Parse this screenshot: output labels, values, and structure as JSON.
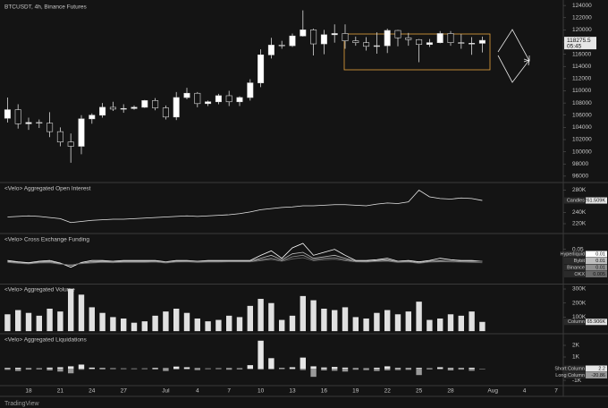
{
  "footer": "TradingView",
  "chart_data": [
    {
      "type": "candlestick",
      "title": "BTCUSDT, 4h, Binance Futures",
      "countdown": "05:45",
      "categories": [
        null,
        null,
        "18",
        null,
        null,
        "21",
        null,
        null,
        "24",
        null,
        null,
        "27",
        null,
        null,
        null,
        "Jul",
        null,
        null,
        "4",
        null,
        null,
        "7",
        null,
        null,
        "10",
        null,
        null,
        "13",
        null,
        null,
        "16",
        null,
        null,
        "19",
        null,
        null,
        "22",
        null,
        null,
        "25",
        null,
        null,
        "28",
        null,
        null,
        null,
        "Aug",
        null,
        null,
        "4",
        null,
        null,
        "7"
      ],
      "open": [
        105500,
        106900,
        104600,
        104800,
        104700,
        103300,
        101600,
        100900,
        105400,
        106000,
        107300,
        107000,
        107100,
        107300,
        108400,
        107200,
        105700,
        108900,
        109600,
        107900,
        108200,
        109200,
        108200,
        108900,
        111300,
        115900,
        117500,
        117400,
        119000,
        120000,
        117700,
        119200,
        119400,
        118200,
        117900,
        117300,
        117400,
        119900,
        118700,
        118400,
        117600,
        117900,
        119400,
        117900,
        117800,
        117800,
        null,
        null,
        null,
        null,
        null,
        null,
        null
      ],
      "high": [
        108900,
        107800,
        105600,
        105300,
        106500,
        104000,
        103000,
        106000,
        106300,
        108000,
        108200,
        107800,
        107600,
        108500,
        108800,
        107600,
        109800,
        110500,
        109800,
        108400,
        109500,
        110000,
        109100,
        111900,
        116800,
        118700,
        118200,
        119400,
        123200,
        120200,
        120000,
        120900,
        120900,
        118900,
        118800,
        119600,
        120200,
        120000,
        119500,
        118500,
        118500,
        119800,
        119800,
        119300,
        118800,
        118900,
        null,
        null,
        null,
        null,
        null,
        null,
        null
      ],
      "low": [
        104800,
        103800,
        103600,
        103900,
        102400,
        100900,
        98200,
        99600,
        104600,
        105600,
        106700,
        106400,
        106900,
        107200,
        106800,
        105300,
        105200,
        108600,
        107300,
        107500,
        107800,
        107500,
        107500,
        108400,
        110600,
        115300,
        116900,
        117200,
        118900,
        115800,
        116000,
        117900,
        116900,
        117400,
        116600,
        116100,
        116200,
        117300,
        117400,
        114700,
        117200,
        117800,
        117400,
        116900,
        115900,
        116300,
        null,
        null,
        null,
        null,
        null,
        null,
        null
      ],
      "close": [
        106900,
        104600,
        104800,
        104700,
        103300,
        101600,
        100900,
        105400,
        106000,
        107300,
        107000,
        107100,
        107300,
        108400,
        107200,
        105700,
        108900,
        109600,
        107900,
        108200,
        109200,
        108200,
        108900,
        111300,
        115900,
        117500,
        117400,
        119000,
        120000,
        117700,
        119200,
        119400,
        118200,
        117900,
        117300,
        117400,
        119900,
        118700,
        118400,
        117600,
        117900,
        119400,
        117900,
        117800,
        117800,
        118275.5,
        null,
        null,
        null,
        null,
        null,
        null,
        null
      ],
      "up_color": "#ffffff",
      "down_color": "#141414",
      "wick_color": "#d9d9d9",
      "ylim": [
        95100,
        124900
      ],
      "yticks": [
        96000,
        98000,
        100000,
        102000,
        104000,
        106000,
        108000,
        110000,
        112000,
        114000,
        116000,
        118000,
        120000,
        122000,
        124000
      ]
    },
    {
      "type": "line",
      "title": "<Velo> Aggregated Open Interest",
      "series": [
        {
          "name": "Candles",
          "color": "#e6e6e6",
          "values": [
            232000,
            233000,
            234000,
            233000,
            231000,
            229000,
            222000,
            224000,
            226000,
            227000,
            228000,
            228000,
            229000,
            230000,
            231000,
            232000,
            233000,
            234000,
            233000,
            234000,
            235000,
            236000,
            238000,
            241000,
            245000,
            247000,
            249000,
            250000,
            252000,
            252000,
            253000,
            254000,
            254000,
            253000,
            252000,
            255000,
            257000,
            256000,
            259000,
            280000,
            268000,
            265000,
            264000,
            266000,
            265000,
            261509
          ],
          "value_labels": [
            null,
            null,
            null,
            null,
            null,
            null,
            null,
            null,
            null,
            null,
            null,
            null,
            null,
            null,
            null,
            null,
            null,
            null,
            null,
            null,
            null,
            null,
            null,
            null,
            null,
            null,
            null,
            null,
            null,
            null,
            null,
            null,
            null,
            null,
            null,
            null,
            null,
            null,
            null,
            null,
            null,
            null,
            null,
            null,
            null,
            "261.509K"
          ]
        }
      ],
      "ylim": [
        204000,
        292000
      ],
      "yticks": [
        {
          "value": 220000,
          "label": "220K"
        },
        {
          "value": 240000,
          "label": "240K"
        },
        {
          "value": 280000,
          "label": "280K"
        }
      ]
    },
    {
      "type": "line",
      "title": "<Velo> Cross Exchange Funding",
      "series": [
        {
          "name": "Hyperliquid",
          "color": "#ffffff",
          "values": [
            0.0125,
            0.008,
            0.005,
            0.01,
            0.0125,
            0.004,
            -0.01,
            0.006,
            0.0125,
            0.0125,
            0.01,
            0.0125,
            0.0125,
            0.0125,
            0.0125,
            0.008,
            0.0125,
            0.0125,
            0.01,
            0.0125,
            0.0125,
            0.0125,
            0.0125,
            0.0125,
            0.03,
            0.045,
            0.02,
            0.055,
            0.07,
            0.03,
            0.04,
            0.05,
            0.03,
            0.0125,
            0.0125,
            0.015,
            0.02,
            0.01,
            0.0125,
            0.008,
            0.0125,
            0.02,
            0.015,
            0.0125,
            0.0125,
            0.01
          ]
        },
        {
          "name": "Bybit",
          "color": "#bdbdbd",
          "values": [
            0.01,
            0.006,
            0.003,
            0.008,
            0.01,
            0.002,
            -0.004,
            0.004,
            0.008,
            0.01,
            0.009,
            0.01,
            0.01,
            0.01,
            0.01,
            0.007,
            0.01,
            0.01,
            0.009,
            0.01,
            0.01,
            0.01,
            0.01,
            0.01,
            0.02,
            0.03,
            0.015,
            0.035,
            0.04,
            0.02,
            0.025,
            0.03,
            0.02,
            0.01,
            0.01,
            0.012,
            0.015,
            0.008,
            0.01,
            0.005,
            0.01,
            0.012,
            0.01,
            0.01,
            0.01,
            0.01
          ]
        },
        {
          "name": "Binance",
          "color": "#8f8f8f",
          "values": [
            0.008,
            0.005,
            0.002,
            0.006,
            0.007,
            0.001,
            -0.003,
            0.003,
            0.006,
            0.008,
            0.007,
            0.008,
            0.008,
            0.008,
            0.009,
            0.006,
            0.009,
            0.01,
            0.008,
            0.009,
            0.009,
            0.01,
            0.01,
            0.01,
            0.015,
            0.02,
            0.012,
            0.025,
            0.03,
            0.015,
            0.02,
            0.022,
            0.015,
            0.01,
            0.009,
            0.011,
            0.012,
            0.008,
            0.009,
            0.004,
            0.009,
            0.01,
            0.01,
            0.01,
            0.009,
            0.01
          ]
        },
        {
          "name": "OKX",
          "color": "#6a6a6a",
          "values": [
            0.006,
            0.003,
            0.001,
            0.004,
            0.005,
            0,
            -0.002,
            0.002,
            0.004,
            0.006,
            0.005,
            0.006,
            0.006,
            0.006,
            0.007,
            0.004,
            0.007,
            0.008,
            0.006,
            0.007,
            0.007,
            0.008,
            0.008,
            0.008,
            0.012,
            0.016,
            0.01,
            0.018,
            0.022,
            0.012,
            0.015,
            0.017,
            0.012,
            0.008,
            0.007,
            0.009,
            0.01,
            0.006,
            0.007,
            0.003,
            0.007,
            0.008,
            0.008,
            0.007,
            0.006,
            0.005
          ]
        }
      ],
      "ylim": [
        -0.065,
        0.1
      ],
      "yticks": [
        0.05
      ]
    },
    {
      "type": "bar",
      "title": "<Velo> Aggregated Volume",
      "series": [
        {
          "name": "Column",
          "color": "#e0e0e0",
          "values": [
            120000,
            150000,
            130000,
            110000,
            160000,
            140000,
            300000,
            260000,
            170000,
            130000,
            100000,
            90000,
            60000,
            70000,
            110000,
            140000,
            160000,
            130000,
            90000,
            70000,
            80000,
            110000,
            100000,
            180000,
            230000,
            200000,
            80000,
            110000,
            250000,
            220000,
            160000,
            150000,
            170000,
            100000,
            90000,
            130000,
            150000,
            120000,
            140000,
            210000,
            80000,
            90000,
            120000,
            110000,
            140000,
            65906
          ],
          "value_labels": [
            null,
            null,
            null,
            null,
            null,
            null,
            null,
            null,
            null,
            null,
            null,
            null,
            null,
            null,
            null,
            null,
            null,
            null,
            null,
            null,
            null,
            null,
            null,
            null,
            null,
            null,
            null,
            null,
            null,
            null,
            null,
            null,
            null,
            null,
            null,
            null,
            null,
            null,
            null,
            null,
            null,
            null,
            null,
            null,
            null,
            "65.906K"
          ]
        }
      ],
      "ylim": [
        -12000,
        332000
      ],
      "yticks": [
        {
          "value": 100000,
          "label": "100K"
        },
        {
          "value": 200000,
          "label": "200K"
        },
        {
          "value": 300000,
          "label": "300K"
        }
      ]
    },
    {
      "type": "bar",
      "title": "<Velo> Aggregated Liquidations",
      "series": [
        {
          "name": "Short Column",
          "color": "#e6e6e6",
          "values": [
            60,
            80,
            40,
            30,
            90,
            120,
            200,
            350,
            90,
            50,
            30,
            20,
            15,
            20,
            60,
            40,
            180,
            120,
            40,
            20,
            30,
            40,
            30,
            300,
            2400,
            900,
            50,
            120,
            950,
            200,
            100,
            150,
            90,
            40,
            30,
            80,
            200,
            60,
            50,
            70,
            30,
            120,
            60,
            50,
            80,
            2.2
          ]
        },
        {
          "name": "Long Column",
          "color": "#9a9a9a",
          "values": [
            -100,
            -200,
            -80,
            -60,
            -150,
            -250,
            -400,
            -90,
            -50,
            -60,
            -40,
            -30,
            -20,
            -40,
            -70,
            -200,
            -60,
            -50,
            -120,
            -30,
            -40,
            -90,
            -60,
            -40,
            -80,
            -60,
            -40,
            -50,
            -120,
            -700,
            -150,
            -180,
            -250,
            -90,
            -120,
            -200,
            -140,
            -120,
            -100,
            -550,
            -60,
            -50,
            -150,
            -80,
            -180,
            -20.86
          ]
        }
      ],
      "ylim": [
        -1380,
        2920
      ],
      "yticks": [
        {
          "value": -1000,
          "label": "-1K"
        },
        {
          "value": 1000,
          "label": "1K"
        },
        {
          "value": 2000,
          "label": "2K"
        }
      ]
    }
  ]
}
